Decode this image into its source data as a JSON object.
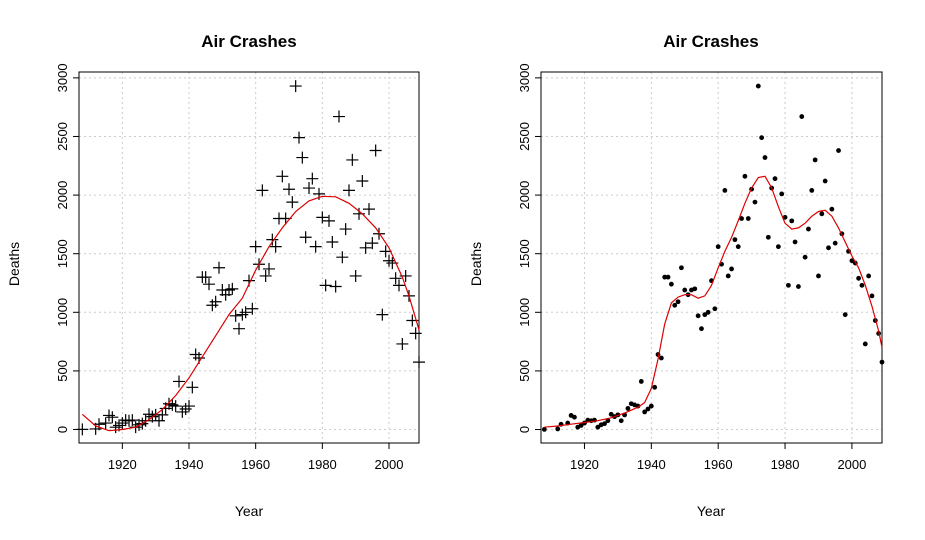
{
  "chart_data": [
    {
      "type": "scatter",
      "title": "Air Crashes",
      "xlabel": "Year",
      "ylabel": "Deaths",
      "xlim": [
        1907,
        2009
      ],
      "ylim": [
        -115,
        3050
      ],
      "xticks": [
        1920,
        1940,
        1960,
        1980,
        2000
      ],
      "yticks": [
        0,
        500,
        1000,
        1500,
        2000,
        2500,
        3000
      ],
      "grid": true,
      "marker": "plus",
      "smoother": "loess (span 0.75)",
      "colors": {
        "points": "#000000",
        "curve": "#dd0000",
        "grid": "#cccccc"
      },
      "series": [
        {
          "values": "points"
        },
        {
          "values": "smooth_curve"
        }
      ],
      "points": [
        [
          1908,
          1
        ],
        [
          1912,
          5
        ],
        [
          1913,
          45
        ],
        [
          1915,
          55
        ],
        [
          1916,
          120
        ],
        [
          1917,
          105
        ],
        [
          1918,
          20
        ],
        [
          1919,
          35
        ],
        [
          1920,
          55
        ],
        [
          1921,
          80
        ],
        [
          1922,
          75
        ],
        [
          1923,
          80
        ],
        [
          1924,
          20
        ],
        [
          1925,
          40
        ],
        [
          1926,
          50
        ],
        [
          1927,
          75
        ],
        [
          1928,
          130
        ],
        [
          1929,
          110
        ],
        [
          1930,
          125
        ],
        [
          1931,
          75
        ],
        [
          1932,
          125
        ],
        [
          1933,
          180
        ],
        [
          1934,
          220
        ],
        [
          1935,
          210
        ],
        [
          1936,
          200
        ],
        [
          1937,
          410
        ],
        [
          1938,
          150
        ],
        [
          1939,
          175
        ],
        [
          1940,
          200
        ],
        [
          1941,
          360
        ],
        [
          1942,
          640
        ],
        [
          1943,
          610
        ],
        [
          1944,
          1300
        ],
        [
          1945,
          1300
        ],
        [
          1946,
          1240
        ],
        [
          1947,
          1060
        ],
        [
          1948,
          1090
        ],
        [
          1949,
          1380
        ],
        [
          1950,
          1190
        ],
        [
          1951,
          1150
        ],
        [
          1952,
          1190
        ],
        [
          1953,
          1200
        ],
        [
          1954,
          970
        ],
        [
          1955,
          860
        ],
        [
          1956,
          980
        ],
        [
          1957,
          1000
        ],
        [
          1958,
          1270
        ],
        [
          1959,
          1030
        ],
        [
          1960,
          1560
        ],
        [
          1961,
          1410
        ],
        [
          1962,
          2040
        ],
        [
          1963,
          1310
        ],
        [
          1964,
          1370
        ],
        [
          1965,
          1620
        ],
        [
          1966,
          1560
        ],
        [
          1967,
          1800
        ],
        [
          1968,
          2160
        ],
        [
          1969,
          1800
        ],
        [
          1970,
          2050
        ],
        [
          1971,
          1940
        ],
        [
          1972,
          2930
        ],
        [
          1973,
          2490
        ],
        [
          1974,
          2320
        ],
        [
          1975,
          1640
        ],
        [
          1976,
          2060
        ],
        [
          1977,
          2140
        ],
        [
          1978,
          1560
        ],
        [
          1979,
          2010
        ],
        [
          1980,
          1810
        ],
        [
          1981,
          1230
        ],
        [
          1982,
          1780
        ],
        [
          1983,
          1600
        ],
        [
          1984,
          1220
        ],
        [
          1985,
          2670
        ],
        [
          1986,
          1470
        ],
        [
          1987,
          1710
        ],
        [
          1988,
          2040
        ],
        [
          1989,
          2300
        ],
        [
          1990,
          1310
        ],
        [
          1991,
          1840
        ],
        [
          1992,
          2120
        ],
        [
          1993,
          1550
        ],
        [
          1994,
          1880
        ],
        [
          1995,
          1590
        ],
        [
          1996,
          2380
        ],
        [
          1997,
          1670
        ],
        [
          1998,
          980
        ],
        [
          1999,
          1520
        ],
        [
          2000,
          1440
        ],
        [
          2001,
          1420
        ],
        [
          2002,
          1290
        ],
        [
          2003,
          1230
        ],
        [
          2004,
          730
        ],
        [
          2005,
          1310
        ],
        [
          2006,
          1140
        ],
        [
          2007,
          930
        ],
        [
          2008,
          820
        ],
        [
          2009,
          575
        ]
      ],
      "smooth_curve": [
        [
          1908,
          130
        ],
        [
          1912,
          30
        ],
        [
          1916,
          -10
        ],
        [
          1920,
          0
        ],
        [
          1924,
          20
        ],
        [
          1928,
          85
        ],
        [
          1932,
          170
        ],
        [
          1936,
          290
        ],
        [
          1940,
          440
        ],
        [
          1944,
          620
        ],
        [
          1948,
          800
        ],
        [
          1952,
          980
        ],
        [
          1956,
          1120
        ],
        [
          1960,
          1360
        ],
        [
          1964,
          1560
        ],
        [
          1968,
          1720
        ],
        [
          1972,
          1860
        ],
        [
          1976,
          1950
        ],
        [
          1980,
          1990
        ],
        [
          1984,
          1985
        ],
        [
          1988,
          1930
        ],
        [
          1992,
          1840
        ],
        [
          1996,
          1720
        ],
        [
          2000,
          1550
        ],
        [
          2004,
          1300
        ],
        [
          2006,
          1140
        ],
        [
          2009,
          850
        ]
      ]
    },
    {
      "type": "scatter",
      "title": "Air Crashes",
      "xlabel": "Year",
      "ylabel": "Deaths",
      "xlim": [
        1907,
        2009
      ],
      "ylim": [
        -115,
        3050
      ],
      "xticks": [
        1920,
        1940,
        1960,
        1980,
        2000
      ],
      "yticks": [
        0,
        500,
        1000,
        1500,
        2000,
        2500,
        3000
      ],
      "grid": true,
      "marker": "dot",
      "smoother": "loess (span 0.2)",
      "colors": {
        "points": "#000000",
        "curve": "#dd0000",
        "grid": "#cccccc"
      },
      "series": [
        {
          "values": "points"
        },
        {
          "values": "smooth_curve"
        }
      ],
      "points": [
        [
          1908,
          1
        ],
        [
          1912,
          5
        ],
        [
          1913,
          45
        ],
        [
          1915,
          55
        ],
        [
          1916,
          120
        ],
        [
          1917,
          105
        ],
        [
          1918,
          20
        ],
        [
          1919,
          35
        ],
        [
          1920,
          55
        ],
        [
          1921,
          80
        ],
        [
          1922,
          75
        ],
        [
          1923,
          80
        ],
        [
          1924,
          20
        ],
        [
          1925,
          40
        ],
        [
          1926,
          50
        ],
        [
          1927,
          75
        ],
        [
          1928,
          130
        ],
        [
          1929,
          110
        ],
        [
          1930,
          125
        ],
        [
          1931,
          75
        ],
        [
          1932,
          125
        ],
        [
          1933,
          180
        ],
        [
          1934,
          220
        ],
        [
          1935,
          210
        ],
        [
          1936,
          200
        ],
        [
          1937,
          410
        ],
        [
          1938,
          150
        ],
        [
          1939,
          175
        ],
        [
          1940,
          200
        ],
        [
          1941,
          360
        ],
        [
          1942,
          640
        ],
        [
          1943,
          610
        ],
        [
          1944,
          1300
        ],
        [
          1945,
          1300
        ],
        [
          1946,
          1240
        ],
        [
          1947,
          1060
        ],
        [
          1948,
          1090
        ],
        [
          1949,
          1380
        ],
        [
          1950,
          1190
        ],
        [
          1951,
          1150
        ],
        [
          1952,
          1190
        ],
        [
          1953,
          1200
        ],
        [
          1954,
          970
        ],
        [
          1955,
          860
        ],
        [
          1956,
          980
        ],
        [
          1957,
          1000
        ],
        [
          1958,
          1270
        ],
        [
          1959,
          1030
        ],
        [
          1960,
          1560
        ],
        [
          1961,
          1410
        ],
        [
          1962,
          2040
        ],
        [
          1963,
          1310
        ],
        [
          1964,
          1370
        ],
        [
          1965,
          1620
        ],
        [
          1966,
          1560
        ],
        [
          1967,
          1800
        ],
        [
          1968,
          2160
        ],
        [
          1969,
          1800
        ],
        [
          1970,
          2050
        ],
        [
          1971,
          1940
        ],
        [
          1972,
          2930
        ],
        [
          1973,
          2490
        ],
        [
          1974,
          2320
        ],
        [
          1975,
          1640
        ],
        [
          1976,
          2060
        ],
        [
          1977,
          2140
        ],
        [
          1978,
          1560
        ],
        [
          1979,
          2010
        ],
        [
          1980,
          1810
        ],
        [
          1981,
          1230
        ],
        [
          1982,
          1780
        ],
        [
          1983,
          1600
        ],
        [
          1984,
          1220
        ],
        [
          1985,
          2670
        ],
        [
          1986,
          1470
        ],
        [
          1987,
          1710
        ],
        [
          1988,
          2040
        ],
        [
          1989,
          2300
        ],
        [
          1990,
          1310
        ],
        [
          1991,
          1840
        ],
        [
          1992,
          2120
        ],
        [
          1993,
          1550
        ],
        [
          1994,
          1880
        ],
        [
          1995,
          1590
        ],
        [
          1996,
          2380
        ],
        [
          1997,
          1670
        ],
        [
          1998,
          980
        ],
        [
          1999,
          1520
        ],
        [
          2000,
          1440
        ],
        [
          2001,
          1420
        ],
        [
          2002,
          1290
        ],
        [
          2003,
          1230
        ],
        [
          2004,
          730
        ],
        [
          2005,
          1310
        ],
        [
          2006,
          1140
        ],
        [
          2007,
          930
        ],
        [
          2008,
          820
        ],
        [
          2009,
          575
        ]
      ],
      "smooth_curve": [
        [
          1908,
          20
        ],
        [
          1912,
          30
        ],
        [
          1916,
          45
        ],
        [
          1920,
          60
        ],
        [
          1924,
          75
        ],
        [
          1928,
          100
        ],
        [
          1932,
          140
        ],
        [
          1936,
          190
        ],
        [
          1938,
          230
        ],
        [
          1940,
          350
        ],
        [
          1942,
          600
        ],
        [
          1944,
          900
        ],
        [
          1946,
          1080
        ],
        [
          1948,
          1130
        ],
        [
          1950,
          1150
        ],
        [
          1952,
          1150
        ],
        [
          1954,
          1120
        ],
        [
          1956,
          1140
        ],
        [
          1958,
          1230
        ],
        [
          1960,
          1380
        ],
        [
          1962,
          1520
        ],
        [
          1964,
          1640
        ],
        [
          1966,
          1780
        ],
        [
          1968,
          1930
        ],
        [
          1970,
          2060
        ],
        [
          1972,
          2150
        ],
        [
          1974,
          2160
        ],
        [
          1976,
          2060
        ],
        [
          1978,
          1900
        ],
        [
          1980,
          1760
        ],
        [
          1982,
          1710
        ],
        [
          1984,
          1720
        ],
        [
          1986,
          1760
        ],
        [
          1988,
          1820
        ],
        [
          1990,
          1860
        ],
        [
          1992,
          1870
        ],
        [
          1994,
          1820
        ],
        [
          1996,
          1720
        ],
        [
          1998,
          1600
        ],
        [
          2000,
          1480
        ],
        [
          2002,
          1380
        ],
        [
          2004,
          1230
        ],
        [
          2006,
          1050
        ],
        [
          2008,
          840
        ],
        [
          2009,
          700
        ]
      ]
    }
  ]
}
